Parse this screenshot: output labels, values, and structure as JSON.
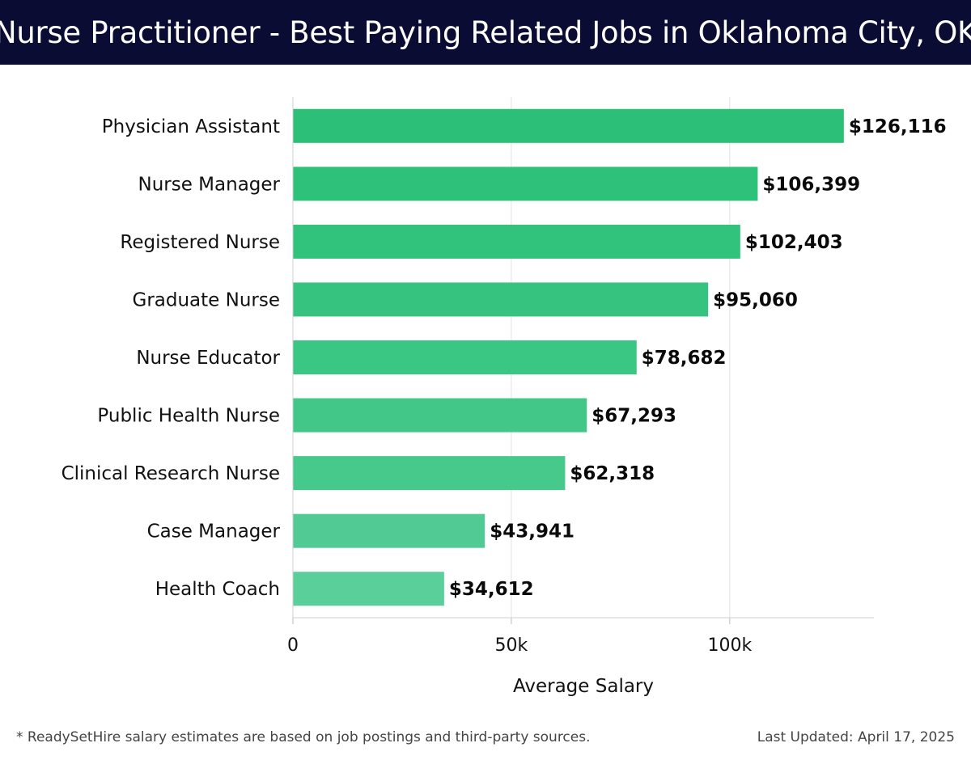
{
  "header": {
    "title": "Nurse Practitioner - Best Paying Related Jobs in Oklahoma City, OK"
  },
  "chart_data": {
    "type": "bar",
    "orientation": "horizontal",
    "categories": [
      "Physician Assistant",
      "Nurse Manager",
      "Registered Nurse",
      "Graduate Nurse",
      "Nurse Educator",
      "Public Health Nurse",
      "Clinical Research Nurse",
      "Case Manager",
      "Health Coach"
    ],
    "values": [
      126116,
      106399,
      102403,
      95060,
      78682,
      67293,
      62318,
      43941,
      34612
    ],
    "value_labels": [
      "$126,116",
      "$106,399",
      "$102,403",
      "$95,060",
      "$78,682",
      "$67,293",
      "$62,318",
      "$43,941",
      "$34,612"
    ],
    "xlabel": "Average Salary",
    "ylabel": "",
    "xlim": [
      0,
      133000
    ],
    "xticks": [
      0,
      50000,
      100000
    ],
    "xtick_labels": [
      "0",
      "50k",
      "100k"
    ],
    "grid": true,
    "colors": [
      "#2bbf77",
      "#2ec17a",
      "#31c27c",
      "#35c37f",
      "#3ac683",
      "#42c789",
      "#47c98c",
      "#51cb93",
      "#5bcf99"
    ]
  },
  "footer": {
    "note": "* ReadySetHire salary estimates are based on job postings and third-party sources.",
    "updated": "Last Updated: April 17, 2025"
  }
}
